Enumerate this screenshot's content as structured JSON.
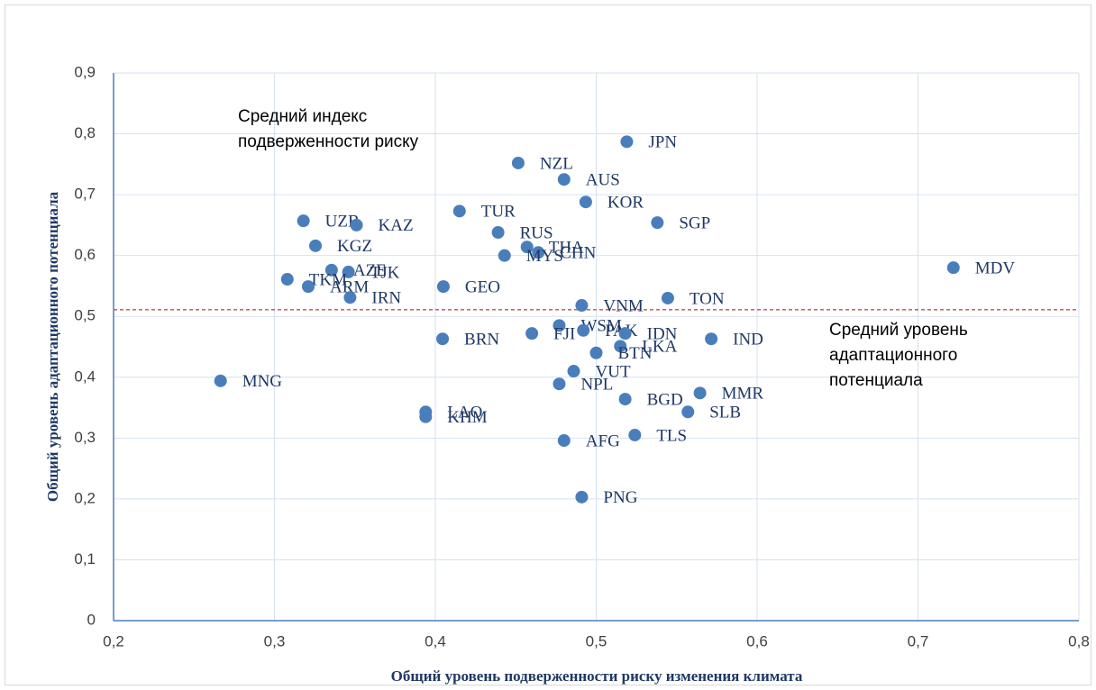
{
  "chart_data": {
    "type": "scatter",
    "xlabel": "Общий уровень подверженности риску изменения климата",
    "ylabel": "Общий уровень адаптационного потенциала",
    "xlim": [
      0.2,
      0.8
    ],
    "xticks": [
      {
        "value": 0.2,
        "label": "0,2"
      },
      {
        "value": 0.3,
        "label": "0,3"
      },
      {
        "value": 0.4,
        "label": "0,4"
      },
      {
        "value": 0.5,
        "label": "0,5"
      },
      {
        "value": 0.6,
        "label": "0,6"
      },
      {
        "value": 0.7,
        "label": "0,7"
      },
      {
        "value": 0.8,
        "label": "0,8"
      }
    ],
    "ylim": [
      0,
      0.9
    ],
    "yticks": [
      0,
      {
        "value": 0.1,
        "label": "0,1"
      },
      {
        "value": 0.2,
        "label": "0,2"
      },
      {
        "value": 0.3,
        "label": "0,3"
      },
      {
        "value": 0.4,
        "label": "0,4"
      },
      {
        "value": 0.5,
        "label": "0,5"
      },
      {
        "value": 0.6,
        "label": "0,6"
      },
      {
        "value": 0.7,
        "label": "0,7"
      },
      {
        "value": 0.8,
        "label": "0,8"
      },
      {
        "value": 0.9,
        "label": "0,9"
      }
    ],
    "grid": true,
    "color": "#4a7ebb",
    "mean_y": 0.511,
    "annotations": [
      [
        "Средний индекс",
        "подверженности риску"
      ],
      [
        "Средний уровень",
        "адаптационного",
        "потенциала"
      ]
    ],
    "labels": [
      "JPN",
      "NZL",
      "AUS",
      "KOR",
      "TUR",
      "SGP",
      "UZB",
      "KAZ",
      "KGZ",
      "RUS",
      "THA",
      "CHN",
      "MYS",
      "MDV",
      "AZE",
      "TJK",
      "TKM",
      "ARM",
      "IRN",
      "GEO",
      "TON",
      "VNM",
      "WSM",
      "PAK",
      "IDN",
      "BRN",
      "FJI",
      "IND",
      "LKA",
      "BTN",
      "VUT",
      "MNG",
      "NPL",
      "MMR",
      "BGD",
      "SLB",
      "LAO",
      "KHM",
      "TLS",
      "AFG",
      "PNG"
    ],
    "x": [
      0.519,
      0.4515,
      0.48,
      0.4935,
      0.415,
      0.538,
      0.318,
      0.351,
      0.3255,
      0.439,
      0.457,
      0.464,
      0.443,
      0.722,
      0.3355,
      0.346,
      0.308,
      0.321,
      0.347,
      0.405,
      0.5445,
      0.491,
      0.477,
      0.492,
      0.518,
      0.4045,
      0.46,
      0.5715,
      0.515,
      0.5,
      0.486,
      0.2665,
      0.477,
      0.5645,
      0.518,
      0.557,
      0.394,
      0.394,
      0.524,
      0.48,
      0.491
    ],
    "y": [
      0.787,
      0.752,
      0.725,
      0.688,
      0.673,
      0.654,
      0.657,
      0.65,
      0.616,
      0.638,
      0.614,
      0.605,
      0.6,
      0.58,
      0.576,
      0.573,
      0.561,
      0.549,
      0.531,
      0.549,
      0.53,
      0.518,
      0.485,
      0.477,
      0.472,
      0.463,
      0.472,
      0.463,
      0.451,
      0.44,
      0.41,
      0.394,
      0.389,
      0.374,
      0.364,
      0.343,
      0.343,
      0.335,
      0.305,
      0.296,
      0.203
    ]
  }
}
